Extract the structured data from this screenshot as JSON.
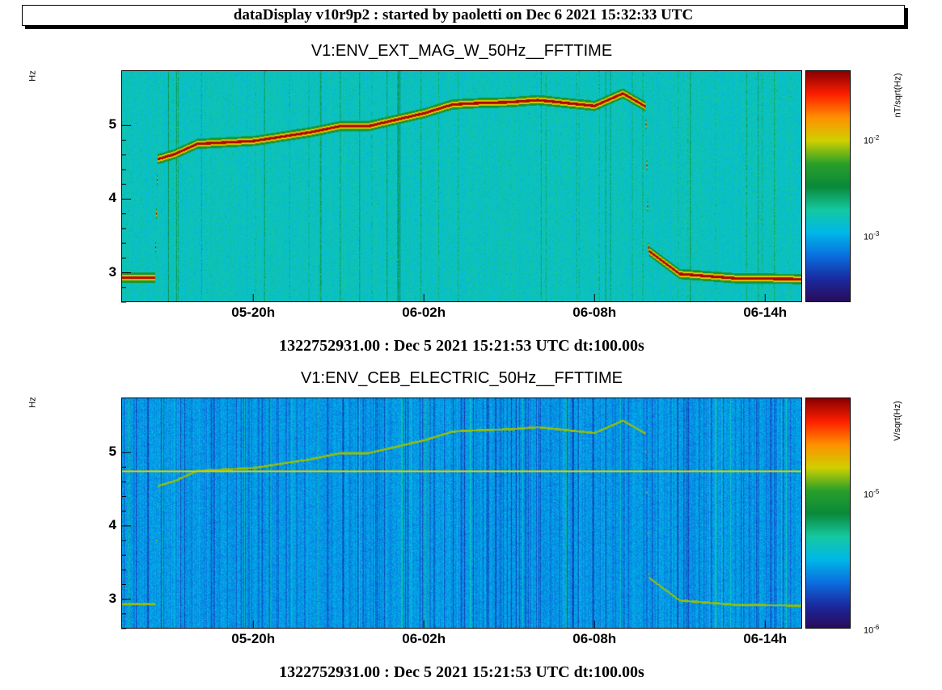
{
  "banner": "dataDisplay v10r9p2 : started by paoletti on Dec  6 2021 15:32:33 UTC",
  "colors": {
    "trace_top": "#8b0000",
    "trace_bottom": "#d8e000",
    "palette": [
      "#2a0b5a",
      "#1a2aa0",
      "#0b6fe0",
      "#00b8e8",
      "#15c8a0",
      "#0a8a3a",
      "#2aa02a",
      "#d0d000",
      "#ff9000",
      "#ff2000",
      "#8b0000"
    ]
  },
  "chart_data": [
    {
      "type": "heatmap",
      "title": "V1:ENV_EXT_MAG_W_50Hz__FFTTIME",
      "ylabel": "Hz",
      "colorbar_label": "nT/sqrt(Hz)",
      "colorbar_ticks": [
        {
          "base": "10",
          "exp": "-2"
        },
        {
          "base": "10",
          "exp": "-3"
        }
      ],
      "colorbar_log": true,
      "ylim": [
        2.6,
        5.75
      ],
      "yticks": [
        "5",
        "4",
        "3"
      ],
      "xticks": [
        "05-20h",
        "06-02h",
        "06-08h",
        "06-14h"
      ],
      "xtick_hours": [
        20,
        26,
        32,
        38
      ],
      "x_start_hours": 15.36,
      "x_end_hours": 39.3,
      "footer": "1322752931.00 : Dec  5 2021 15:21:53 UTC dt:100.00s",
      "trace_hours": [
        15.36,
        16.5,
        16.6,
        17.2,
        18.0,
        19.0,
        20.0,
        21.0,
        22.0,
        23.0,
        24.0,
        25.0,
        26.0,
        27.0,
        28.0,
        29.0,
        30.0,
        31.0,
        32.0,
        33.0,
        33.8,
        33.9,
        35.0,
        37.0,
        39.3
      ],
      "trace_hz": [
        2.93,
        2.93,
        4.55,
        4.62,
        4.76,
        4.78,
        4.8,
        4.86,
        4.92,
        5.0,
        5.0,
        5.09,
        5.18,
        5.3,
        5.32,
        5.33,
        5.36,
        5.32,
        5.28,
        5.45,
        5.27,
        3.3,
        2.98,
        2.92,
        2.91
      ]
    },
    {
      "type": "heatmap",
      "title": "V1:ENV_CEB_ELECTRIC_50Hz__FFTTIME",
      "ylabel": "Hz",
      "colorbar_label": "V/sqrt(Hz)",
      "colorbar_ticks": [
        {
          "base": "10",
          "exp": "-5"
        },
        {
          "base": "10",
          "exp": "-6"
        }
      ],
      "colorbar_log": true,
      "ylim": [
        2.6,
        5.75
      ],
      "yticks": [
        "5",
        "4",
        "3"
      ],
      "xticks": [
        "05-20h",
        "06-02h",
        "06-08h",
        "06-14h"
      ],
      "xtick_hours": [
        20,
        26,
        32,
        38
      ],
      "x_start_hours": 15.36,
      "x_end_hours": 39.3,
      "footer": "1322752931.00 : Dec  5 2021 15:21:53 UTC dt:100.00s",
      "constant_line_hz": 4.75,
      "trace_hours": [
        15.36,
        16.5,
        16.6,
        17.2,
        18.0,
        19.0,
        20.0,
        21.0,
        22.0,
        23.0,
        24.0,
        25.0,
        26.0,
        27.0,
        28.0,
        29.0,
        30.0,
        31.0,
        32.0,
        33.0,
        33.8,
        33.9,
        35.0,
        37.0,
        39.3
      ],
      "trace_hz": [
        2.93,
        2.93,
        4.55,
        4.62,
        4.76,
        4.78,
        4.8,
        4.86,
        4.92,
        5.0,
        5.0,
        5.09,
        5.18,
        5.3,
        5.32,
        5.33,
        5.36,
        5.32,
        5.28,
        5.45,
        5.27,
        3.3,
        2.98,
        2.92,
        2.91
      ]
    }
  ]
}
